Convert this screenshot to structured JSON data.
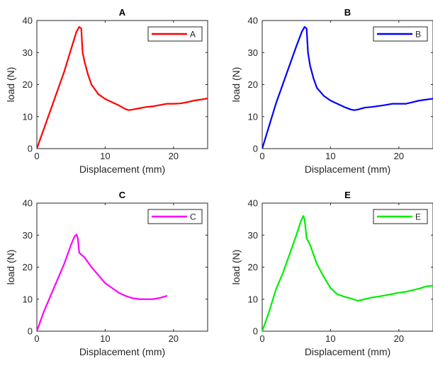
{
  "figure": {
    "background": "#ffffff",
    "axis_color": "#262626"
  },
  "chart_data": [
    {
      "type": "line",
      "title": "A",
      "xlabel": "Displacement (mm)",
      "ylabel": "load (N)",
      "xlim": [
        0,
        25
      ],
      "ylim": [
        0,
        40
      ],
      "xticks": [
        "0",
        "10",
        "20"
      ],
      "yticks": [
        "0",
        "10",
        "20",
        "30",
        "40"
      ],
      "grid": false,
      "legend_position": "top-right",
      "series": [
        {
          "name": "A",
          "color": "#ff0000",
          "x": [
            0,
            1,
            2,
            3,
            4,
            5,
            5.8,
            6.2,
            6.5,
            6.7,
            7,
            7.5,
            8,
            9,
            10,
            11,
            12,
            13,
            13.5,
            14,
            15,
            16,
            17,
            18,
            19,
            20,
            21,
            22,
            23,
            24,
            25
          ],
          "y": [
            0,
            6,
            12,
            18,
            24,
            31,
            36.5,
            38,
            37.5,
            30,
            27,
            23,
            20,
            17,
            15.5,
            14.5,
            13.5,
            12.3,
            12,
            12.2,
            12.6,
            13,
            13.2,
            13.6,
            14,
            14,
            14.1,
            14.5,
            15,
            15.3,
            15.7
          ]
        }
      ]
    },
    {
      "type": "line",
      "title": "B",
      "xlabel": "Displacement (mm)",
      "ylabel": "load (N)",
      "xlim": [
        0,
        25
      ],
      "ylim": [
        0,
        40
      ],
      "xticks": [
        "0",
        "10",
        "20"
      ],
      "yticks": [
        "0",
        "10",
        "20",
        "30",
        "40"
      ],
      "grid": false,
      "legend_position": "top-right",
      "series": [
        {
          "name": "B",
          "color": "#0000ff",
          "x": [
            0,
            1,
            2,
            3,
            4,
            5,
            5.8,
            6.2,
            6.5,
            6.7,
            7,
            7.5,
            8,
            9,
            10,
            11,
            12,
            13,
            13.5,
            14,
            15,
            16,
            17,
            18,
            19,
            20,
            21,
            22,
            23,
            24,
            25
          ],
          "y": [
            0,
            7,
            14,
            20,
            26,
            32,
            36.5,
            38,
            37.5,
            30,
            26,
            22,
            19,
            16.5,
            15,
            14,
            13,
            12.2,
            12,
            12.2,
            12.8,
            13,
            13.3,
            13.6,
            14,
            14,
            14,
            14.5,
            15,
            15.3,
            15.6
          ]
        }
      ]
    },
    {
      "type": "line",
      "title": "C",
      "xlabel": "Displacement (mm)",
      "ylabel": "load (N)",
      "xlim": [
        0,
        25
      ],
      "ylim": [
        0,
        40
      ],
      "xticks": [
        "0",
        "10",
        "20"
      ],
      "yticks": [
        "0",
        "10",
        "20",
        "30",
        "40"
      ],
      "grid": false,
      "legend_position": "top-right",
      "series": [
        {
          "name": "C",
          "color": "#ff00ff",
          "x": [
            0,
            0.5,
            1,
            2,
            3,
            4,
            5,
            5.5,
            5.8,
            6.0,
            6.2,
            7,
            8,
            9,
            10,
            11,
            12,
            13,
            14,
            15,
            16,
            17,
            18,
            19
          ],
          "y": [
            0,
            3,
            6,
            11,
            16,
            21,
            27,
            29.5,
            30.2,
            29,
            24.5,
            23,
            20,
            17.5,
            15,
            13.5,
            12,
            11,
            10.3,
            10,
            10,
            10,
            10.4,
            11
          ]
        }
      ]
    },
    {
      "type": "line",
      "title": "E",
      "xlabel": "Displacement (mm)",
      "ylabel": "load (N)",
      "xlim": [
        0,
        25
      ],
      "ylim": [
        0,
        40
      ],
      "xticks": [
        "0",
        "10",
        "20"
      ],
      "yticks": [
        "0",
        "10",
        "20",
        "30",
        "40"
      ],
      "grid": false,
      "legend_position": "top-right",
      "series": [
        {
          "name": "E",
          "color": "#00ee00",
          "x": [
            0,
            1,
            2,
            3,
            4,
            5,
            5.6,
            6.0,
            6.2,
            6.5,
            7,
            8,
            9,
            10,
            11,
            12,
            13,
            14,
            15,
            16,
            17,
            18,
            19,
            20,
            21,
            22,
            23,
            24,
            25
          ],
          "y": [
            0,
            6,
            13,
            18,
            24,
            30,
            34,
            36,
            35,
            29,
            27,
            21,
            17,
            13.5,
            11.5,
            10.8,
            10.2,
            9.5,
            10,
            10.5,
            10.8,
            11.2,
            11.6,
            12,
            12.3,
            12.8,
            13.3,
            14,
            14.2
          ]
        }
      ]
    }
  ]
}
